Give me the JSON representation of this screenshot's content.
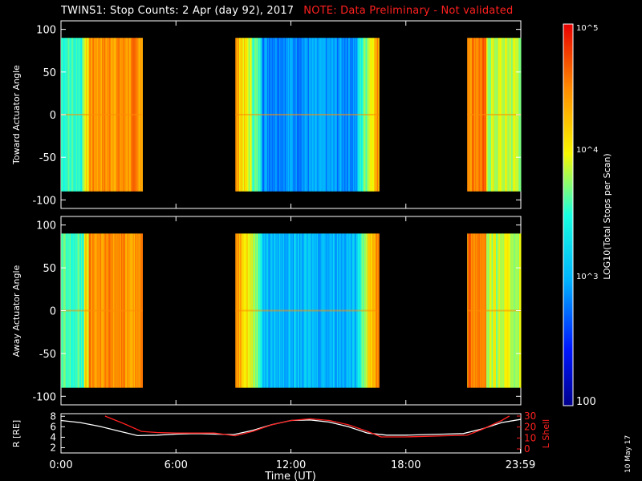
{
  "header": {
    "title": "TWINS1: Stop Counts:  2 Apr (day  92), 2017",
    "note": "NOTE: Data Preliminary - Not validated",
    "note_color": "#ff2020"
  },
  "side_date": "10 May 17",
  "colorbar": {
    "label": "LOG10(Total Stops per Scan)",
    "ticks": [
      "10^5",
      "10^4",
      "10^3",
      "100"
    ],
    "scale": "log",
    "range": [
      100,
      100000
    ]
  },
  "chart_data": [
    {
      "type": "heatmap",
      "panel": "toward",
      "ylabel": "Toward Actuator Angle",
      "ylim": [
        -110,
        110
      ],
      "yticks": [
        100,
        50,
        0,
        -50,
        -100
      ],
      "xlim": [
        0,
        24
      ],
      "data_segments_hours": [
        [
          0,
          4.25
        ],
        [
          9.1,
          16.6
        ],
        [
          21.2,
          24
        ]
      ],
      "angle_range": [
        -90,
        90
      ]
    },
    {
      "type": "heatmap",
      "panel": "away",
      "ylabel": "Away Actuator Angle",
      "ylim": [
        -110,
        110
      ],
      "yticks": [
        100,
        50,
        0,
        -50,
        -100
      ],
      "xlim": [
        0,
        24
      ],
      "data_segments_hours": [
        [
          0,
          4.25
        ],
        [
          9.1,
          16.6
        ],
        [
          21.2,
          24
        ]
      ],
      "angle_range": [
        -90,
        90
      ]
    },
    {
      "type": "line",
      "panel": "ephemeris",
      "ylabel_left": "R [RE]",
      "ylabel_right": "L Shell",
      "yticks_left": [
        8,
        6,
        4,
        2
      ],
      "yticks_right": [
        30,
        20,
        10,
        0
      ],
      "ylim_left": [
        1,
        8.5
      ],
      "ylim_right": [
        0,
        30
      ],
      "xlim": [
        0,
        24
      ],
      "xticks": [
        "0:00",
        "6:00",
        "12:00",
        "18:00",
        "23:59"
      ],
      "xlabel": "Time (UT)",
      "series": [
        {
          "axis": "left",
          "color": "#ffffff",
          "x": [
            0,
            1,
            2,
            3,
            4,
            5,
            6,
            7,
            8,
            9,
            10,
            11,
            12,
            13,
            14,
            15,
            16,
            17,
            18,
            19,
            20,
            21,
            22,
            23,
            23.98
          ],
          "y": [
            7.2,
            6.8,
            6.1,
            5.2,
            4.3,
            4.4,
            4.6,
            4.7,
            4.6,
            4.5,
            5.3,
            6.4,
            7.2,
            7.3,
            6.9,
            6.0,
            4.8,
            4.4,
            4.4,
            4.5,
            4.6,
            4.7,
            5.6,
            6.8,
            7.4
          ]
        },
        {
          "axis": "right",
          "color": "#ff2020",
          "x": [
            2.3,
            3.3,
            4.2,
            5,
            6,
            7,
            8,
            9.1,
            10,
            11,
            12,
            13,
            14,
            15,
            16,
            16.7,
            18,
            19,
            20,
            21.2,
            22,
            23,
            23.4
          ],
          "y": [
            30,
            23,
            16,
            15,
            14.5,
            14.5,
            14.5,
            12,
            16,
            22,
            26,
            27.5,
            26,
            22,
            16,
            11,
            11,
            11.5,
            12,
            12.5,
            18,
            26,
            30
          ]
        }
      ]
    }
  ]
}
